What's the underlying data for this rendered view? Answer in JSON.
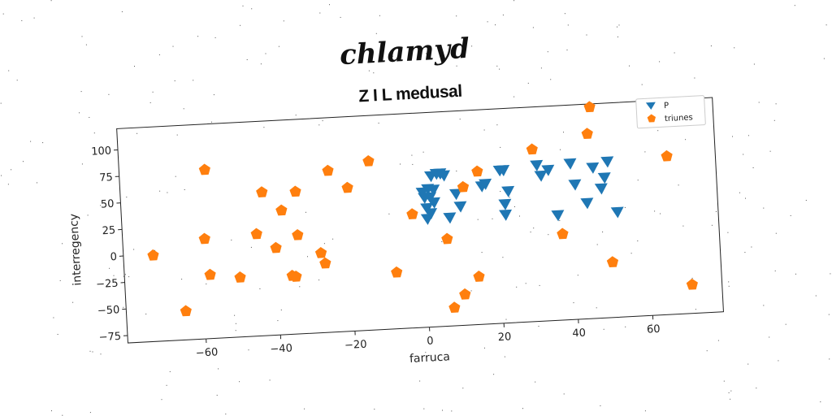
{
  "chart_data": {
    "type": "scatter",
    "suptitle": "chlamyd",
    "title": "Z I L medusal",
    "xlabel": "farruca",
    "ylabel": "interregency",
    "xlim": [
      -81,
      79
    ],
    "ylim": [
      -82,
      120
    ],
    "xticks": [
      -60,
      -40,
      -20,
      0,
      20,
      40,
      60
    ],
    "yticks": [
      -75,
      -50,
      -25,
      0,
      25,
      50,
      75,
      100
    ],
    "xtick_labels": [
      "−60",
      "−40",
      "−20",
      "0",
      "20",
      "40",
      "60"
    ],
    "ytick_labels": [
      "−75",
      "−50",
      "−25",
      "0",
      "25",
      "50",
      "75",
      "100"
    ],
    "grid": false,
    "legend_position": "upper right",
    "series": [
      {
        "name": "P",
        "marker": "triangle-down",
        "color": "#1f77b4",
        "points": [
          [
            0,
            45
          ],
          [
            0.5,
            40
          ],
          [
            1,
            30
          ],
          [
            1,
            20
          ],
          [
            1.5,
            48
          ],
          [
            2,
            40
          ],
          [
            2,
            25
          ],
          [
            2.5,
            60
          ],
          [
            3,
            47
          ],
          [
            3,
            35
          ],
          [
            4,
            62
          ],
          [
            5,
            62
          ],
          [
            6,
            60
          ],
          [
            7,
            20
          ],
          [
            9,
            42
          ],
          [
            10,
            30
          ],
          [
            16,
            48
          ],
          [
            17,
            50
          ],
          [
            21,
            62
          ],
          [
            22,
            62
          ],
          [
            22,
            20
          ],
          [
            22,
            30
          ],
          [
            23,
            42
          ],
          [
            31,
            65
          ],
          [
            32,
            55
          ],
          [
            34,
            60
          ],
          [
            36,
            17
          ],
          [
            40,
            65
          ],
          [
            41,
            45
          ],
          [
            44,
            27
          ],
          [
            46,
            60
          ],
          [
            48,
            40
          ],
          [
            49,
            50
          ],
          [
            50,
            65
          ],
          [
            52,
            17
          ]
        ]
      },
      {
        "name": "triunes",
        "marker": "pentagon",
        "color": "#ff7f0e",
        "points": [
          [
            -73,
            -1
          ],
          [
            -65,
            -55
          ],
          [
            -59,
            12
          ],
          [
            -58,
            -22
          ],
          [
            -58,
            77
          ],
          [
            -50,
            -26
          ],
          [
            -45,
            14
          ],
          [
            -43,
            53
          ],
          [
            -40,
            0
          ],
          [
            -38,
            35
          ],
          [
            -36,
            -27
          ],
          [
            -35,
            -28
          ],
          [
            -34,
            52
          ],
          [
            -34,
            11
          ],
          [
            -28,
            -7
          ],
          [
            -27,
            -17
          ],
          [
            -25,
            70
          ],
          [
            -20,
            53
          ],
          [
            -14,
            77
          ],
          [
            -8,
            -29
          ],
          [
            -3,
            25
          ],
          [
            6,
            0
          ],
          [
            7,
            -65
          ],
          [
            10,
            -53
          ],
          [
            11,
            48
          ],
          [
            14,
            -37
          ],
          [
            15,
            62
          ],
          [
            30,
            80
          ],
          [
            37,
            -1
          ],
          [
            45,
            92
          ],
          [
            46,
            117
          ],
          [
            50,
            -30
          ],
          [
            66,
            67
          ],
          [
            71,
            -55
          ]
        ]
      }
    ]
  }
}
